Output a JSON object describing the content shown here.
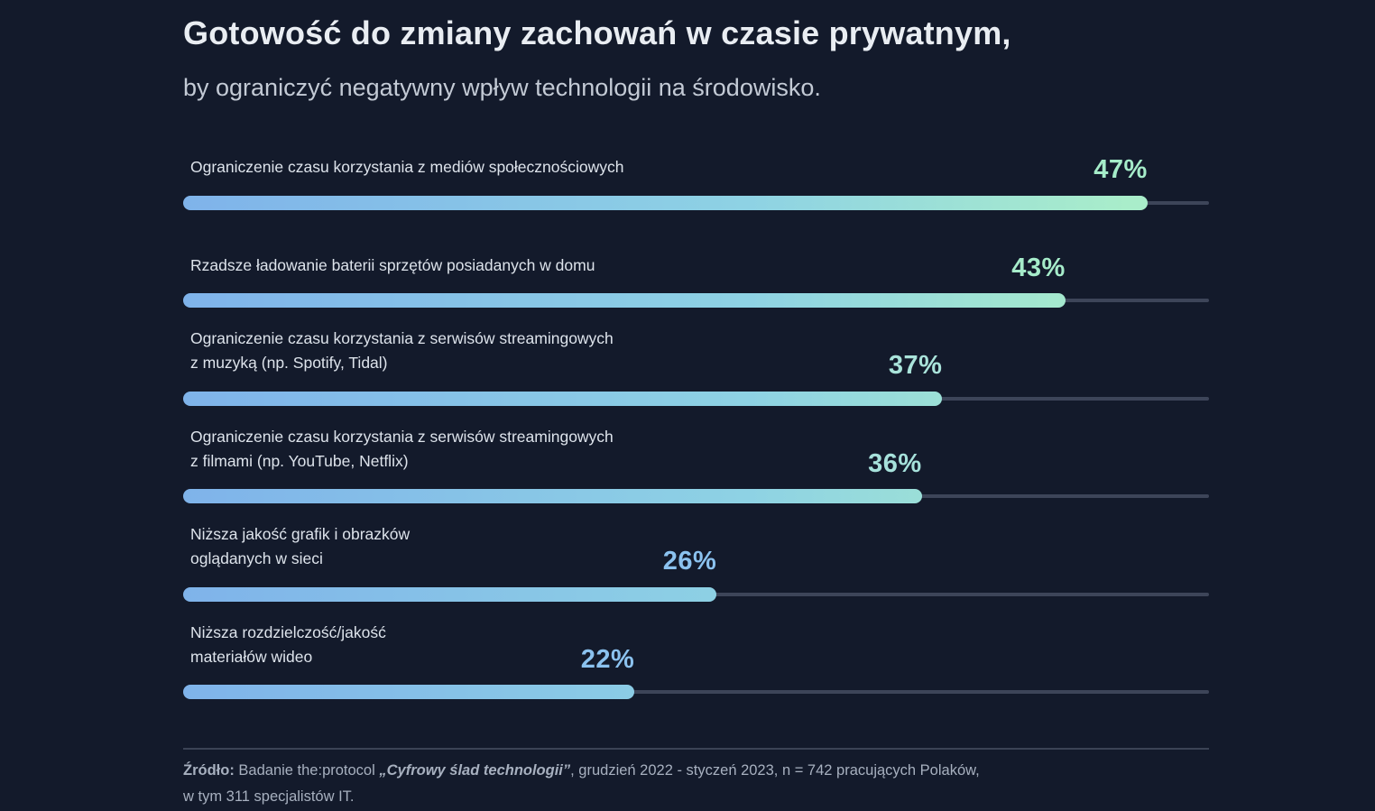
{
  "title": "Gotowość do zmiany zachowań w czasie prywatnym,",
  "subtitle": "by ograniczyć negatywny wpływ technologii na środowisko.",
  "chart_data": {
    "type": "bar",
    "orientation": "horizontal",
    "unit": "%",
    "value_axis_max": 50,
    "grid": false,
    "legend": false,
    "title": "Gotowość do zmiany zachowań w czasie prywatnym, by ograniczyć negatywny wpływ technologii na środowisko.",
    "categories": [
      "Ograniczenie czasu korzystania z mediów społecznościowych",
      "Rzadsze ładowanie baterii sprzętów posiadanych w domu",
      "Ograniczenie czasu korzystania z serwisów streamingowych z muzyką (np. Spotify, Tidal)",
      "Ograniczenie czasu korzystania z serwisów streamingowych z filmami (np. YouTube, Netflix)",
      "Niższa jakość grafik i obrazków oglądanych w sieci",
      "Niższa rozdzielczość/jakość materiałów wideo"
    ],
    "values": [
      47,
      43,
      37,
      36,
      26,
      22
    ],
    "rows": [
      {
        "label_lines": [
          "Ograniczenie czasu korzystania z mediów społecznościowych"
        ],
        "value": 47,
        "value_label": "47%",
        "value_color": "#a5ecc9"
      },
      {
        "label_lines": [
          "Rzadsze ładowanie baterii sprzętów posiadanych w domu"
        ],
        "value": 43,
        "value_label": "43%",
        "value_color": "#a6ecca"
      },
      {
        "label_lines": [
          "Ograniczenie czasu korzystania z serwisów streamingowych",
          "z muzyką (np. Spotify, Tidal)"
        ],
        "value": 37,
        "value_label": "37%",
        "value_color": "#a9e3da"
      },
      {
        "label_lines": [
          "Ograniczenie czasu korzystania z serwisów streamingowych",
          "z filmami (np. YouTube, Netflix)"
        ],
        "value": 36,
        "value_label": "36%",
        "value_color": "#a6e1db"
      },
      {
        "label_lines": [
          "Niższa jakość grafik i obrazków",
          "oglądanych w sieci"
        ],
        "value": 26,
        "value_label": "26%",
        "value_color": "#8bc2ef"
      },
      {
        "label_lines": [
          "Niższa rozdzielczość/jakość",
          "materiałów wideo"
        ],
        "value": 22,
        "value_label": "22%",
        "value_color": "#8bc2ef"
      }
    ]
  },
  "colors": {
    "background": "#131a2b",
    "bar_gradient_start": "#7fb3ea",
    "bar_gradient_mid": "#8ed2e4",
    "bar_gradient_end": "#a9edca",
    "track": "#3d4559",
    "divider": "#3b4355",
    "title_text": "#e9edf2",
    "subtitle_text": "#c3cad5",
    "label_text": "#dde3eb",
    "footer_text": "#a7b0bf"
  },
  "footer": {
    "segments": [
      {
        "text": "Źródło:",
        "style": "bold"
      },
      {
        "text": " Badanie the:protocol ",
        "style": "normal"
      },
      {
        "text": "„Cyfrowy ślad technologii”",
        "style": "bold-italic"
      },
      {
        "text": ", grudzień 2022 - styczeń 2023, n = 742 pracujących Polaków,",
        "style": "normal"
      }
    ],
    "line2": "w tym 311 specjalistów IT."
  }
}
